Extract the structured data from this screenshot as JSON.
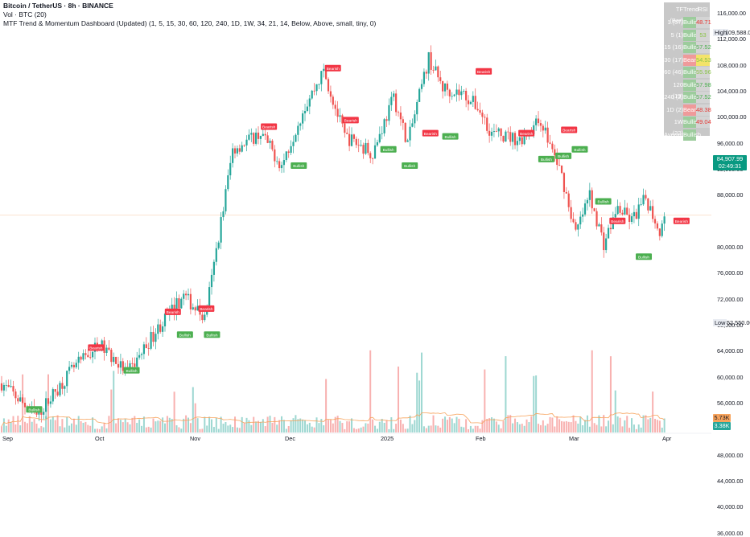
{
  "legend": {
    "title": "Bitcoin / TetherUS · 8h · BINANCE",
    "vol": "Vol · BTC (20)",
    "indicator": "MTF Trend & Momentum Dashboard (Updated) (1, 5, 15, 30, 60, 120, 240, 1D, 1W, 34, 21, 14, Below, Above, small, tiny, 0)"
  },
  "colors": {
    "up": "#26a69a",
    "down": "#ef5350",
    "bull": "#4caf50",
    "bear": "#f23645",
    "ema": "#f7a35c"
  },
  "dashboard": {
    "headers": [
      "TF (Bar)",
      "Trend",
      "RSI"
    ],
    "rows": [
      {
        "tf": "1 (57)",
        "trend": "Bullish",
        "rsi": "48.71"
      },
      {
        "tf": "5 (1)",
        "trend": "Bullish",
        "rsi": "53"
      },
      {
        "tf": "15 (16)",
        "trend": "Bullish",
        "rsi": "57.52"
      },
      {
        "tf": "30 (17)",
        "trend": "Bearish",
        "rsi": "54.53"
      },
      {
        "tf": "60 (46)",
        "trend": "Bullish",
        "rsi": "55.96"
      },
      {
        "tf": "120 (13)",
        "trend": "Bullish",
        "rsi": "57.98"
      },
      {
        "tf": "240 (2)",
        "trend": "Bullish",
        "rsi": "57.52"
      },
      {
        "tf": "1D (2)",
        "trend": "Bearish",
        "rsi": "48.38"
      },
      {
        "tf": "1W (22)",
        "trend": "Bullish",
        "rsi": "49.04"
      }
    ],
    "average_label": "Average",
    "average_trend": "Bullish"
  },
  "price_scale": {
    "ticks": [
      "116,000.00",
      "112,000.00",
      "108,000.00",
      "104,000.00",
      "100,000.00",
      "96,000.00",
      "92,000.00",
      "88,000.00",
      "80,000.00",
      "76,000.00",
      "72,000.00",
      "68,000.00",
      "64,000.00",
      "60,000.00",
      "56,000.00",
      "48,000.00",
      "44,000.00",
      "40,000.00",
      "36,000.00"
    ],
    "high_label": "High",
    "high_value": "109,588.00",
    "current_price": "84,907.99",
    "countdown": "02:49:31",
    "low_label": "Low",
    "low_value": "52,550.00",
    "vol_a": "5.73K",
    "vol_b": "3.38K"
  },
  "time_axis": [
    "Sep",
    "Oct",
    "Nov",
    "Dec",
    "2025",
    "Feb",
    "Mar",
    "Apr"
  ],
  "chart_data": {
    "type": "candlestick",
    "y_range": [
      48000,
      116000
    ],
    "anchors": [
      [
        0,
        59000
      ],
      [
        0.05,
        54000
      ],
      [
        0.1,
        61000
      ],
      [
        0.14,
        65000
      ],
      [
        0.18,
        60500
      ],
      [
        0.22,
        67000
      ],
      [
        0.26,
        72500
      ],
      [
        0.29,
        69000
      ],
      [
        0.3,
        75000
      ],
      [
        0.33,
        95000
      ],
      [
        0.37,
        97500
      ],
      [
        0.4,
        92500
      ],
      [
        0.43,
        101000
      ],
      [
        0.46,
        107000
      ],
      [
        0.49,
        97000
      ],
      [
        0.53,
        94500
      ],
      [
        0.56,
        103000
      ],
      [
        0.58,
        96000
      ],
      [
        0.61,
        109000
      ],
      [
        0.63,
        104500
      ],
      [
        0.66,
        103500
      ],
      [
        0.68,
        101500
      ],
      [
        0.7,
        97500
      ],
      [
        0.74,
        96500
      ],
      [
        0.77,
        99500
      ],
      [
        0.8,
        91000
      ],
      [
        0.82,
        82000
      ],
      [
        0.84,
        88000
      ],
      [
        0.86,
        80500
      ],
      [
        0.88,
        86000
      ],
      [
        0.9,
        84000
      ],
      [
        0.92,
        87500
      ],
      [
        0.94,
        82500
      ],
      [
        0.95,
        84900
      ]
    ],
    "signals": [
      {
        "label": "Bullish",
        "t": 0.048,
        "p": 55000,
        "pos": "below"
      },
      {
        "label": "Bearish",
        "t": 0.135,
        "p": 64500,
        "pos": "above"
      },
      {
        "label": "Bullish",
        "t": 0.185,
        "p": 61000,
        "pos": "below"
      },
      {
        "label": "Bearish",
        "t": 0.243,
        "p": 70000,
        "pos": "above"
      },
      {
        "label": "Bullish",
        "t": 0.26,
        "p": 66500,
        "pos": "below"
      },
      {
        "label": "Bearish",
        "t": 0.29,
        "p": 70500,
        "pos": "above"
      },
      {
        "label": "Bullish",
        "t": 0.298,
        "p": 66500,
        "pos": "below"
      },
      {
        "label": "Bearish",
        "t": 0.378,
        "p": 98500,
        "pos": "above"
      },
      {
        "label": "Bullish",
        "t": 0.42,
        "p": 92500,
        "pos": "below"
      },
      {
        "label": "Bearish",
        "t": 0.493,
        "p": 99500,
        "pos": "above"
      },
      {
        "label": "Bearish",
        "t": 0.468,
        "p": 107500,
        "pos": "above"
      },
      {
        "label": "Bullish",
        "t": 0.546,
        "p": 95000,
        "pos": "below"
      },
      {
        "label": "Bullish",
        "t": 0.576,
        "p": 92500,
        "pos": "below"
      },
      {
        "label": "Bearish",
        "t": 0.605,
        "p": 97500,
        "pos": "above"
      },
      {
        "label": "Bullish",
        "t": 0.633,
        "p": 97000,
        "pos": "below"
      },
      {
        "label": "Bearish",
        "t": 0.68,
        "p": 107000,
        "pos": "above"
      },
      {
        "label": "Bearish",
        "t": 0.74,
        "p": 97500,
        "pos": "above"
      },
      {
        "label": "Bullish",
        "t": 0.768,
        "p": 93500,
        "pos": "below"
      },
      {
        "label": "Bullish",
        "t": 0.792,
        "p": 94000,
        "pos": "below"
      },
      {
        "label": "Bearish",
        "t": 0.8,
        "p": 98000,
        "pos": "above"
      },
      {
        "label": "Bullish",
        "t": 0.815,
        "p": 95000,
        "pos": "below"
      },
      {
        "label": "Bullish",
        "t": 0.848,
        "p": 87000,
        "pos": "below"
      },
      {
        "label": "Bearish",
        "t": 0.868,
        "p": 84000,
        "pos": "above"
      },
      {
        "label": "Bullish",
        "t": 0.905,
        "p": 78500,
        "pos": "below"
      },
      {
        "label": "Bearish",
        "t": 0.958,
        "p": 84000,
        "pos": "above"
      }
    ]
  }
}
